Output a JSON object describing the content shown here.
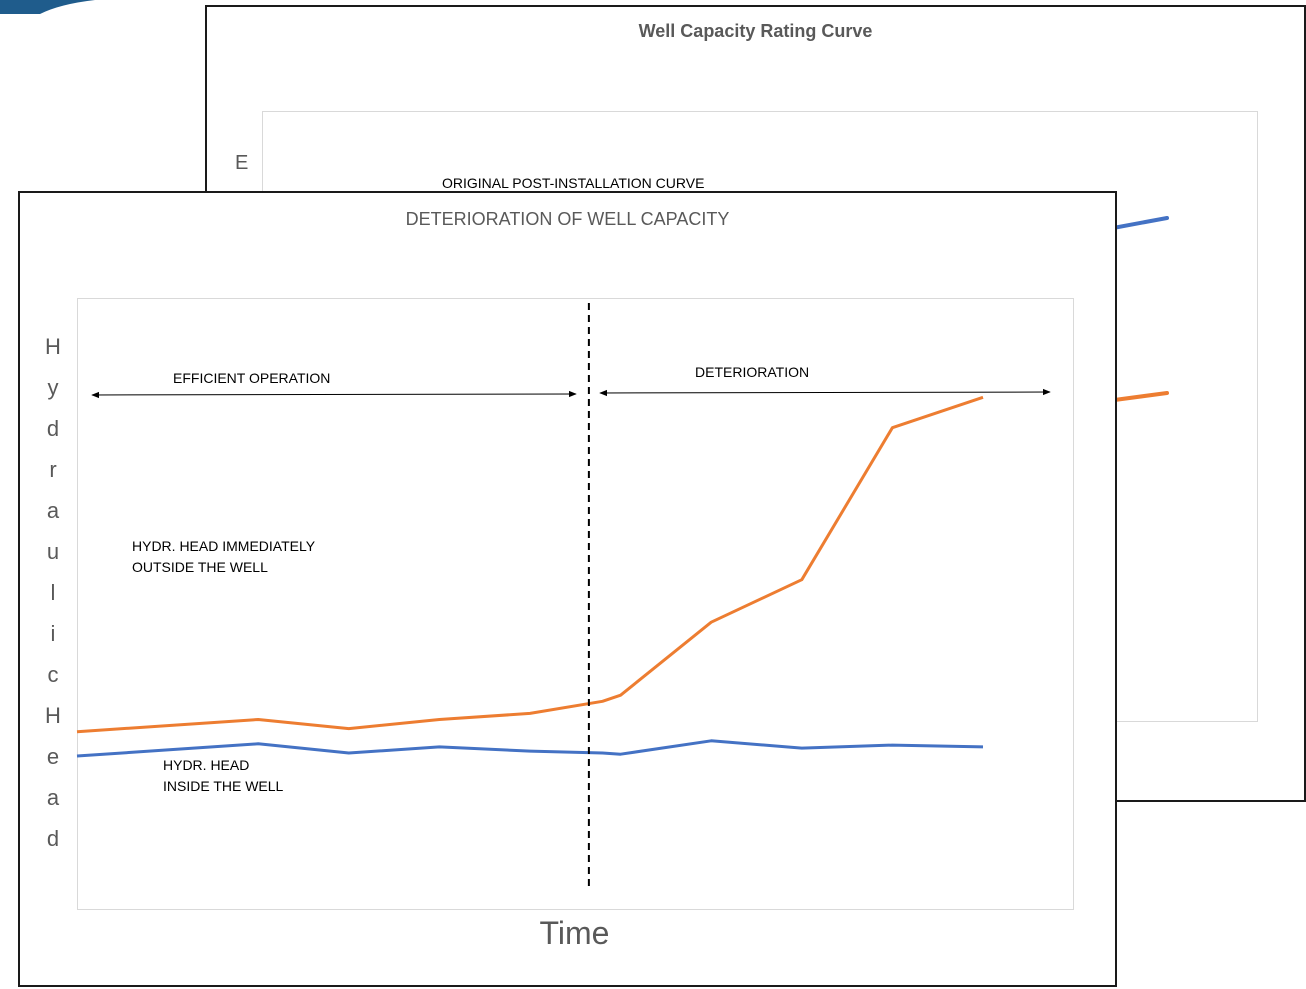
{
  "colors": {
    "outside": "#ED7D31",
    "inside": "#4472C4",
    "accent": "#1F5C8C"
  },
  "back_chart": {
    "title": "Well Capacity Rating Curve",
    "ylabel_visible": "E",
    "annotation": "ORIGINAL POST-INSTALLATION CURVE"
  },
  "chart_data": {
    "type": "line",
    "title": "DETERIORATION OF WELL CAPACITY",
    "xlabel": "Time",
    "ylabel": "Hydraulic Head",
    "x": [
      0,
      1,
      2,
      3,
      4,
      5,
      5.8,
      6,
      7,
      8,
      9,
      10
    ],
    "ylim": [
      0,
      100
    ],
    "grid": false,
    "series": [
      {
        "name": "HYDR. HEAD IMMEDIATELY OUTSIDE THE WELL",
        "key": "outside",
        "values": [
          29,
          30,
          31,
          29.5,
          31,
          32,
          34,
          35,
          47,
          54,
          79,
          84
        ]
      },
      {
        "name": "HYDR. HEAD INSIDE THE WELL",
        "key": "inside",
        "values": [
          25,
          26,
          27,
          25.5,
          26.5,
          25.8,
          25.5,
          25.3,
          27.5,
          26.3,
          26.8,
          26.5
        ]
      }
    ],
    "divider_x": 5.65,
    "annotations": {
      "efficient": "EFFICIENT OPERATION",
      "deterioration": "DETERIORATION",
      "outside_label": "HYDR. HEAD IMMEDIATELY\nOUTSIDE THE WELL",
      "inside_label": "HYDR. HEAD\nINSIDE THE WELL"
    }
  }
}
